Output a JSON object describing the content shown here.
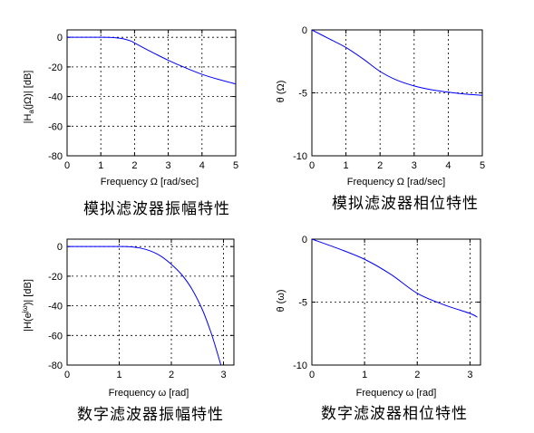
{
  "chart_data": [
    {
      "type": "line",
      "xlabel": "Frequency Ω [rad/sec]",
      "ylabel": "|Ha(jΩ)| [dB]",
      "caption": "模拟滤波器振幅特性",
      "xlim": [
        0,
        5
      ],
      "ylim": [
        -80,
        5
      ],
      "xticks": [
        0,
        1,
        2,
        3,
        4,
        5
      ],
      "yticks": [
        0,
        -20,
        -40,
        -60,
        -80
      ],
      "grid": true,
      "color": "#0000ff",
      "x": [
        0,
        0.5,
        1.0,
        1.3,
        1.5,
        1.7,
        1.9,
        2.0,
        2.3,
        2.6,
        3.0,
        3.5,
        4.0,
        4.5,
        5.0
      ],
      "y": [
        0,
        0,
        0,
        -0.1,
        -0.5,
        -1.2,
        -2.6,
        -3.8,
        -7.5,
        -11,
        -15.5,
        -20.5,
        -25,
        -28.5,
        -31.5
      ]
    },
    {
      "type": "line",
      "xlabel": "Frequency Ω [rad/sec]",
      "ylabel": "θ (Ω)",
      "caption": "模拟滤波器相位特性",
      "xlim": [
        0,
        5
      ],
      "ylim": [
        -10,
        0
      ],
      "xticks": [
        0,
        1,
        2,
        3,
        4,
        5
      ],
      "yticks": [
        0,
        -5,
        -10
      ],
      "grid": true,
      "color": "#0000ff",
      "x": [
        0,
        0.5,
        1.0,
        1.5,
        2.0,
        2.5,
        3.0,
        3.5,
        4.0,
        4.5,
        5.0
      ],
      "y": [
        0,
        -0.7,
        -1.4,
        -2.3,
        -3.3,
        -4.0,
        -4.45,
        -4.75,
        -4.95,
        -5.1,
        -5.2
      ]
    },
    {
      "type": "line",
      "xlabel": "Frequency ω [rad]",
      "ylabel": "|H(e^jω)| [dB]",
      "caption": "数字滤波器振幅特性",
      "xlim": [
        0,
        3.2
      ],
      "ylim": [
        -80,
        5
      ],
      "xticks": [
        0,
        1,
        2,
        3
      ],
      "yticks": [
        0,
        -20,
        -40,
        -60,
        -80
      ],
      "grid": true,
      "color": "#0000ff",
      "x": [
        0,
        0.5,
        1.0,
        1.2,
        1.4,
        1.6,
        1.8,
        2.0,
        2.2,
        2.4,
        2.6,
        2.75,
        2.85,
        2.95
      ],
      "y": [
        0,
        0,
        0,
        -0.1,
        -1,
        -3,
        -6.5,
        -12,
        -19,
        -29,
        -43,
        -57,
        -68,
        -80
      ]
    },
    {
      "type": "line",
      "xlabel": "Frequency ω [rad]",
      "ylabel": "θ (ω)",
      "caption": "数字滤波器相位特性",
      "xlim": [
        0,
        3.2
      ],
      "ylim": [
        -10,
        0
      ],
      "xticks": [
        0,
        1,
        2,
        3
      ],
      "yticks": [
        0,
        -5,
        -10
      ],
      "grid": true,
      "color": "#0000ff",
      "x": [
        0,
        0.5,
        1.0,
        1.5,
        2.0,
        2.5,
        3.0,
        3.14
      ],
      "y": [
        0,
        -0.75,
        -1.6,
        -2.8,
        -4.3,
        -5.2,
        -5.9,
        -6.2
      ]
    }
  ]
}
